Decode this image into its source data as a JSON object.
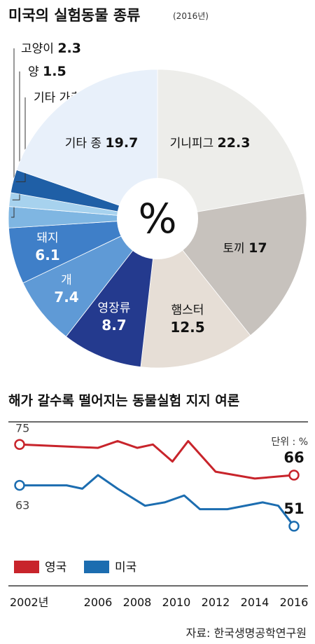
{
  "chart_data": [
    {
      "type": "pie",
      "title": "미국의 실험동물 종류",
      "subtitle": "(2016년)",
      "center_label": "%",
      "slices": [
        {
          "name": "기니피그",
          "value": 22.3,
          "color": "#ededea"
        },
        {
          "name": "토끼",
          "value": 17,
          "color": "#c7c2bd"
        },
        {
          "name": "햄스터",
          "value": 12.5,
          "color": "#e6ded6"
        },
        {
          "name": "영장류",
          "value": 8.7,
          "color": "#243a8e"
        },
        {
          "name": "개",
          "value": 7.4,
          "color": "#5f9ad6"
        },
        {
          "name": "돼지",
          "value": 6.1,
          "color": "#3f7fc8"
        },
        {
          "name": "고양이",
          "value": 2.3,
          "color": "#7fb6e2"
        },
        {
          "name": "양",
          "value": 1.5,
          "color": "#a7d2ee"
        },
        {
          "name": "기타 가축",
          "value": 2.5,
          "color": "#1f5fa6"
        },
        {
          "name": "기타 종",
          "value": 19.7,
          "color": "#e8f0fa"
        }
      ]
    },
    {
      "type": "line",
      "title": "해가 갈수록 떨어지는 동물실험 지지 여론",
      "unit_label": "단위 : %",
      "x_ticks": [
        "2002년",
        "2006",
        "2008",
        "2010",
        "2012",
        "2014",
        "2016"
      ],
      "x_tick_values": [
        2002,
        2006,
        2008,
        2010,
        2012,
        2014,
        2016
      ],
      "xlim": [
        2002,
        2016
      ],
      "ylim": [
        45,
        80
      ],
      "series": [
        {
          "name": "영국",
          "color": "#c8242b",
          "points": [
            [
              2002,
              75
            ],
            [
              2006,
              74
            ],
            [
              2007,
              76
            ],
            [
              2008,
              74
            ],
            [
              2008.8,
              75
            ],
            [
              2009.8,
              70
            ],
            [
              2010.6,
              76
            ],
            [
              2012,
              67
            ],
            [
              2014,
              65
            ],
            [
              2016,
              66
            ]
          ],
          "start_label": "75",
          "end_label": "66"
        },
        {
          "name": "미국",
          "color": "#1c6db0",
          "points": [
            [
              2002,
              63
            ],
            [
              2004.4,
              63
            ],
            [
              2005.2,
              62
            ],
            [
              2006,
              66
            ],
            [
              2007,
              62
            ],
            [
              2008.4,
              57
            ],
            [
              2009.4,
              58
            ],
            [
              2010.4,
              60
            ],
            [
              2011.2,
              56
            ],
            [
              2012.6,
              56
            ],
            [
              2014.4,
              58
            ],
            [
              2015.2,
              57
            ],
            [
              2016,
              51
            ]
          ],
          "start_label": "63",
          "end_label": "51"
        }
      ]
    }
  ],
  "source_label": "자료: 한국생명공학연구원"
}
